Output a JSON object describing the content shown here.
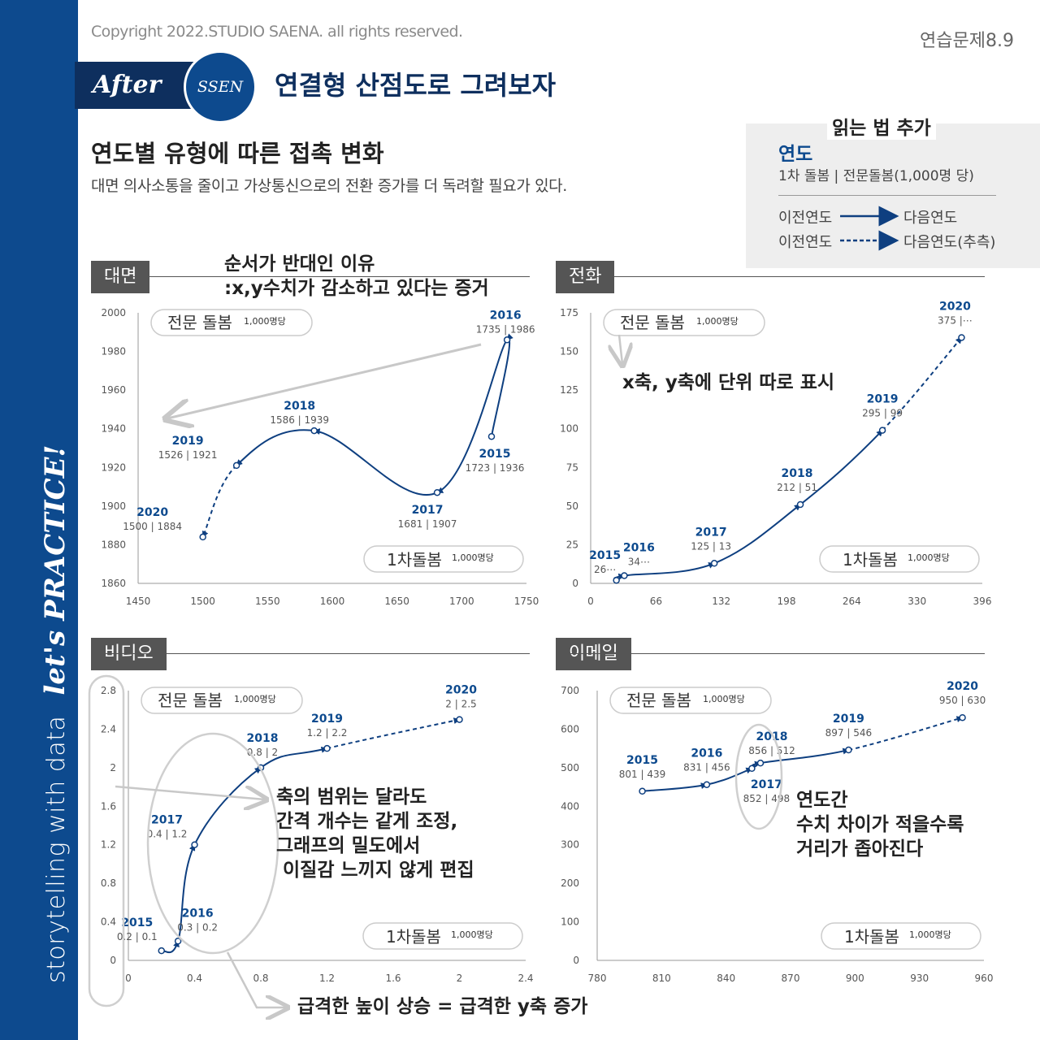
{
  "header": {
    "copyright": "Copyright 2022.STUDIO SAENA. all rights reserved.",
    "exercise": "연습문제8.9",
    "after_label": "After",
    "ssen_label": "SSEN",
    "headline": "연결형 산점도로 그려보자",
    "title": "연도별 유형에 따른 접촉 변화",
    "subtitle": "대면 의사소통을 줄이고 가상통신으로의 전환 증가를 더 독려할 필요가 있다."
  },
  "sidebar": {
    "text": "storytelling with data",
    "lets": "let's PRACTICE!"
  },
  "legend": {
    "tag": "읽는 법 추가",
    "year": "연도",
    "desc": "1차 돌봄 | 전문돌봄(1,000명 당)",
    "prev1": "이전연도",
    "next1": "다음연도",
    "prev2": "이전연도",
    "next2": "다음연도(추측)"
  },
  "colors": {
    "line": "#0e3f80",
    "accent": "#0d4a8e",
    "axis": "#999999",
    "grid": "#dddddd",
    "pill": "#cccccc",
    "note_arrow": "#c8c8c8"
  },
  "chart_data": [
    {
      "id": "face",
      "type": "scatter",
      "title": "대면",
      "xlabel": "1차돌봄",
      "xunit": "1,000명당",
      "ylabel": "전문 돌봄",
      "yunit": "1,000명당",
      "xlim": [
        1450,
        1750
      ],
      "ylim": [
        1860,
        2000
      ],
      "xticks": [
        1450,
        1500,
        1550,
        1600,
        1650,
        1700,
        1750
      ],
      "yticks": [
        1860,
        1880,
        1900,
        1920,
        1940,
        1960,
        1980,
        2000
      ],
      "points": [
        {
          "year": "2015",
          "x": 1723,
          "y": 1936,
          "label": "1723 | 1936"
        },
        {
          "year": "2016",
          "x": 1735,
          "y": 1986,
          "label": "1735 | 1986"
        },
        {
          "year": "2017",
          "x": 1681,
          "y": 1907,
          "label": "1681 | 1907"
        },
        {
          "year": "2018",
          "x": 1586,
          "y": 1939,
          "label": "1586 | 1939"
        },
        {
          "year": "2019",
          "x": 1526,
          "y": 1921,
          "label": "1526 | 1921"
        },
        {
          "year": "2020",
          "x": 1500,
          "y": 1884,
          "label": "1500 | 1884"
        }
      ],
      "projected_from": 4
    },
    {
      "id": "phone",
      "type": "scatter",
      "title": "전화",
      "xlabel": "1차돌봄",
      "xunit": "1,000명당",
      "ylabel": "전문 돌봄",
      "yunit": "1,000명당",
      "xlim": [
        0,
        396
      ],
      "ylim": [
        0,
        175
      ],
      "xticks": [
        0,
        66,
        132,
        198,
        264,
        330,
        396
      ],
      "yticks": [
        0,
        25,
        50,
        75,
        100,
        125,
        150,
        175
      ],
      "points": [
        {
          "year": "2015",
          "x": 26,
          "y": 2,
          "label": "26⋯"
        },
        {
          "year": "2016",
          "x": 34,
          "y": 5,
          "label": "34⋯"
        },
        {
          "year": "2017",
          "x": 125,
          "y": 13,
          "label": "125 | 13"
        },
        {
          "year": "2018",
          "x": 212,
          "y": 51,
          "label": "212 | 51"
        },
        {
          "year": "2019",
          "x": 295,
          "y": 99,
          "label": "295 | 99"
        },
        {
          "year": "2020",
          "x": 375,
          "y": 159,
          "label": "375 |⋯"
        }
      ],
      "projected_from": 4
    },
    {
      "id": "video",
      "type": "scatter",
      "title": "비디오",
      "xlabel": "1차돌봄",
      "xunit": "1,000명당",
      "ylabel": "전문 돌봄",
      "yunit": "1,000명당",
      "xlim": [
        0,
        2.4
      ],
      "ylim": [
        0,
        2.8
      ],
      "xticks": [
        0,
        0.4,
        0.8,
        1.2,
        1.6,
        2,
        2.4
      ],
      "yticks": [
        0,
        0.4,
        0.8,
        1.2,
        1.6,
        2,
        2.4,
        2.8
      ],
      "points": [
        {
          "year": "2015",
          "x": 0.2,
          "y": 0.1,
          "label": "0.2 | 0.1"
        },
        {
          "year": "2016",
          "x": 0.3,
          "y": 0.2,
          "label": "0.3 | 0.2"
        },
        {
          "year": "2017",
          "x": 0.4,
          "y": 1.2,
          "label": "0.4 | 1.2"
        },
        {
          "year": "2018",
          "x": 0.8,
          "y": 2,
          "label": "0.8 | 2"
        },
        {
          "year": "2019",
          "x": 1.2,
          "y": 2.2,
          "label": "1.2 | 2.2"
        },
        {
          "year": "2020",
          "x": 2,
          "y": 2.5,
          "label": "2 | 2.5"
        }
      ],
      "projected_from": 4
    },
    {
      "id": "email",
      "type": "scatter",
      "title": "이메일",
      "xlabel": "1차돌봄",
      "xunit": "1,000명당",
      "ylabel": "전문 돌봄",
      "yunit": "1,000명당",
      "xlim": [
        780,
        960
      ],
      "ylim": [
        0,
        700
      ],
      "xticks": [
        780,
        810,
        840,
        870,
        900,
        930,
        960
      ],
      "yticks": [
        0,
        100,
        200,
        300,
        400,
        500,
        600,
        700
      ],
      "points": [
        {
          "year": "2015",
          "x": 801,
          "y": 439,
          "label": "801 | 439"
        },
        {
          "year": "2016",
          "x": 831,
          "y": 456,
          "label": "831 | 456"
        },
        {
          "year": "2017",
          "x": 852,
          "y": 498,
          "label": "852 | 498"
        },
        {
          "year": "2018",
          "x": 856,
          "y": 512,
          "label": "856 | 512"
        },
        {
          "year": "2019",
          "x": 897,
          "y": 546,
          "label": "897 | 546"
        },
        {
          "year": "2020",
          "x": 950,
          "y": 630,
          "label": "950 | 630"
        }
      ],
      "projected_from": 4
    }
  ],
  "annotations": {
    "face_reverse": "순서가 반대인 이유\n:x,y수치가 감소하고 있다는 증거",
    "phone_units": "x축, y축에 단위 따로 표시",
    "video_range": "축의 범위는 달라도\n간격 개수는 같게 조정,\n그래프의 밀도에서\n 이질감 느끼지 않게 편집",
    "video_height": "급격한 높이 상승 = 급격한 y축 증가",
    "email_distance": "연도간\n수치 차이가 적을수록\n거리가 좁아진다"
  }
}
